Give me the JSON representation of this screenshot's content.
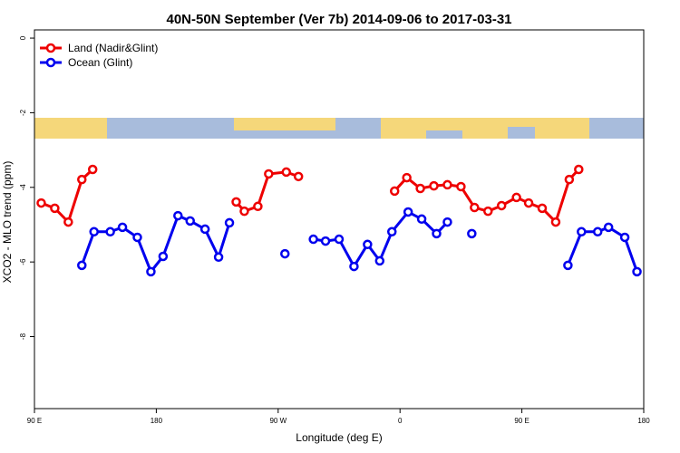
{
  "chart_data": {
    "type": "line",
    "title": "40N-50N September (Ver 7b)   2014-09-06 to 2017-03-31",
    "x_label": "Longitude (deg E)",
    "y_label": "XCO2 - MLO trend (ppm)",
    "xlim": [
      90,
      540
    ],
    "xticks": [
      {
        "value": 90,
        "label": "90 E"
      },
      {
        "value": 180,
        "label": "180"
      },
      {
        "value": 270,
        "label": "90 W"
      },
      {
        "value": 360,
        "label": "0"
      },
      {
        "value": 450,
        "label": "90 E"
      },
      {
        "value": 540,
        "label": "180"
      }
    ],
    "ylim": [
      -9.93,
      0.22
    ],
    "yticks": [
      0,
      -2,
      -4,
      -6,
      -8
    ],
    "legend": "top-left",
    "series": [
      {
        "name": "Land (Nadir&Glint)",
        "color": "#ee0000",
        "x": [
          95,
          105,
          115,
          125,
          133,
          null,
          239,
          245,
          255,
          263,
          276,
          285,
          null,
          356,
          365,
          375,
          385,
          395,
          405,
          415,
          425,
          435,
          446,
          455,
          465,
          475,
          485,
          492
        ],
        "values": [
          -4.42,
          -4.56,
          -4.93,
          -3.79,
          -3.52,
          null,
          -4.39,
          -4.64,
          -4.51,
          -3.64,
          -3.59,
          -3.71,
          null,
          -4.1,
          -3.74,
          -4.03,
          -3.96,
          -3.93,
          -3.98,
          -4.54,
          -4.64,
          -4.49,
          -4.27,
          -4.42,
          -4.56,
          -4.93,
          -3.79,
          -3.52
        ]
      },
      {
        "name": "Ocean (Glint)",
        "color": "#0000ee",
        "x": [
          125,
          134,
          146,
          155,
          166,
          176,
          185,
          196,
          205,
          216,
          226,
          234,
          null,
          275,
          null,
          296,
          305,
          315,
          326,
          336,
          345,
          354,
          366,
          376,
          387,
          395,
          null,
          413,
          null,
          484,
          494,
          506,
          514,
          526,
          535
        ],
        "values": [
          -6.09,
          -5.19,
          -5.19,
          -5.07,
          -5.34,
          -6.26,
          -5.85,
          -4.76,
          -4.9,
          -5.12,
          -5.87,
          -4.95,
          null,
          -5.78,
          null,
          -5.39,
          -5.44,
          -5.39,
          -6.12,
          -5.53,
          -5.97,
          -5.19,
          -4.66,
          -4.85,
          -5.24,
          -4.93,
          null,
          -5.24,
          null,
          -6.09,
          -5.19,
          -5.19,
          -5.07,
          -5.34,
          -6.26
        ]
      }
    ]
  }
}
